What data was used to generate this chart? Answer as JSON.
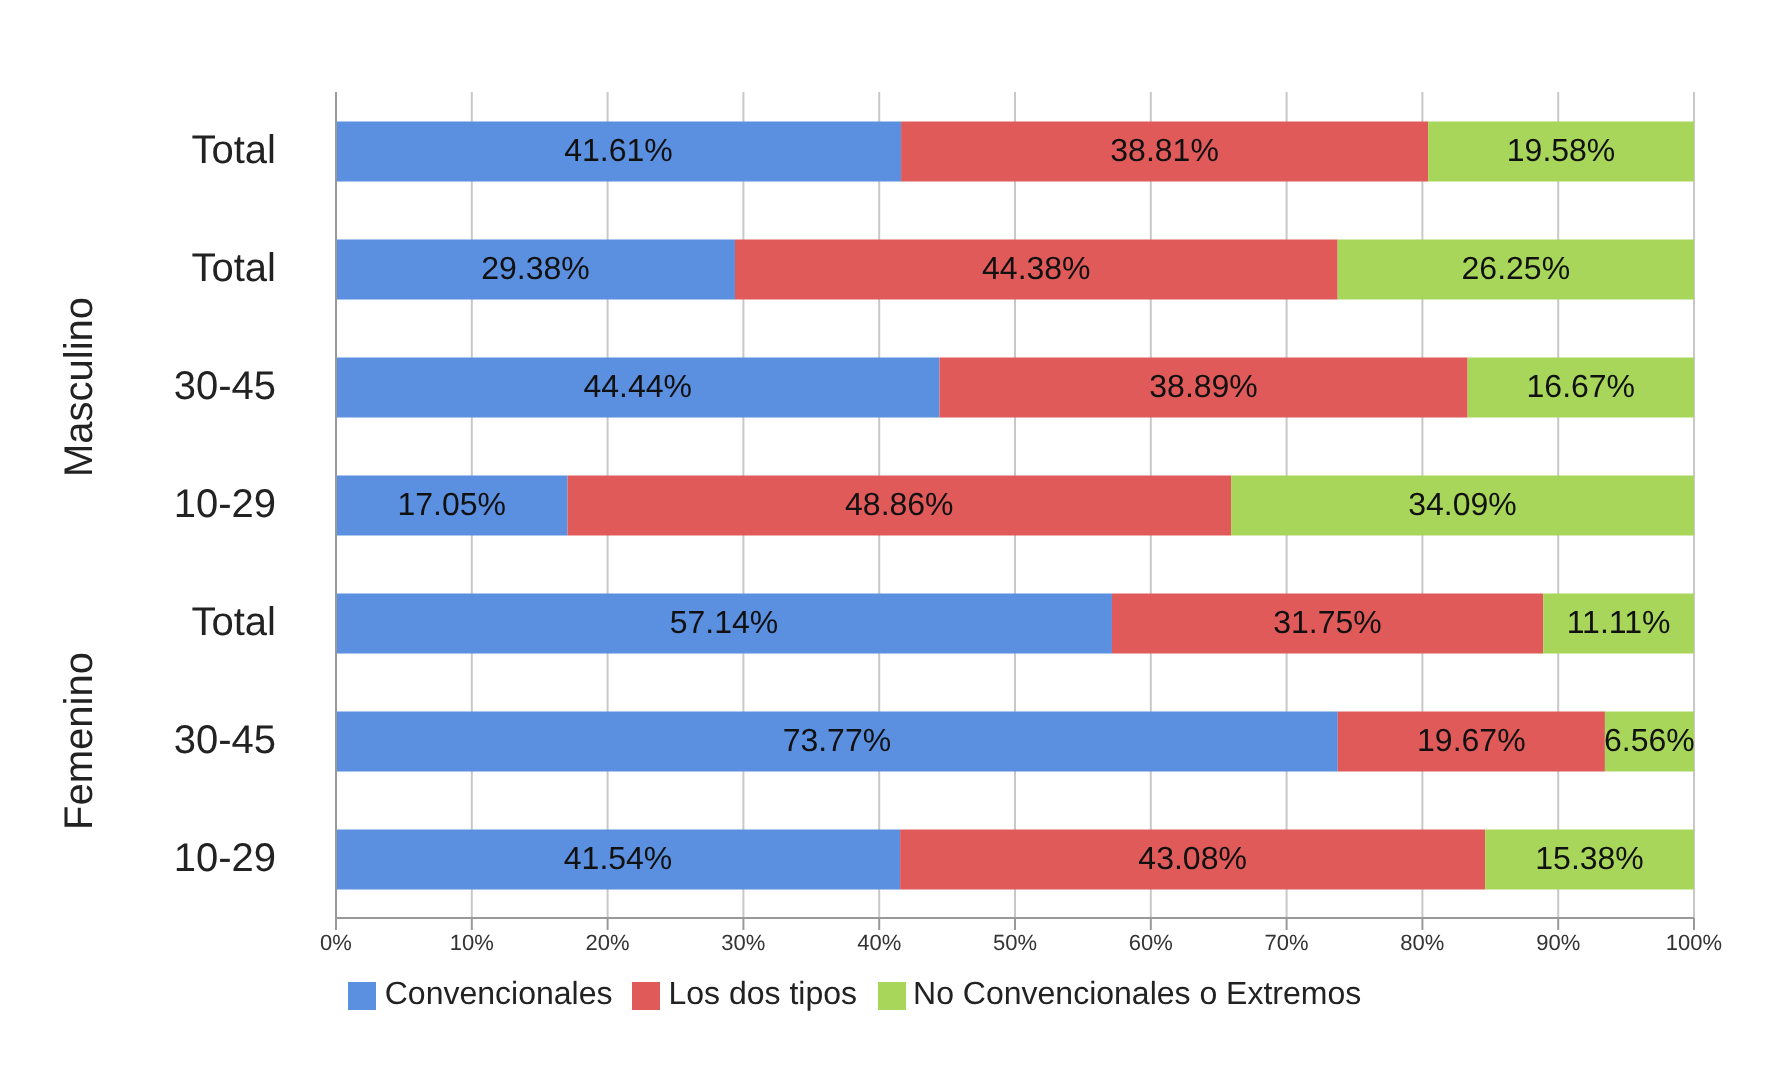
{
  "chart_data": {
    "type": "bar",
    "orientation": "horizontal",
    "stacked": true,
    "categories": [
      "Total",
      "Total",
      "30-45",
      "10-29",
      "Total",
      "30-45",
      "10-29"
    ],
    "annotations": [
      "Masculino",
      "Femenino"
    ],
    "series": [
      {
        "name": "Convencionales",
        "color": "#5b8fe0",
        "values": [
          41.61,
          29.38,
          44.44,
          17.05,
          57.14,
          73.77,
          41.54
        ],
        "value_labels": [
          "41.61%",
          "29.38%",
          "44.44%",
          "17.05%",
          "57.14%",
          "73.77%",
          "41.54%"
        ]
      },
      {
        "name": "Los dos tipos",
        "color": "#e05a5a",
        "values": [
          38.81,
          44.38,
          38.89,
          48.86,
          31.75,
          19.67,
          43.08
        ],
        "value_labels": [
          "38.81%",
          "44.38%",
          "38.89%",
          "48.86%",
          "31.75%",
          "19.67%",
          "43.08%"
        ]
      },
      {
        "name": "No Convencionales o Extremos",
        "color": "#a8d65a",
        "values": [
          19.58,
          26.25,
          16.67,
          34.09,
          11.11,
          6.56,
          15.38
        ],
        "value_labels": [
          "19.58%",
          "26.25%",
          "16.67%",
          "34.09%",
          "11.11%",
          "6.56%",
          "15.38%"
        ]
      }
    ],
    "xlim": [
      0,
      100
    ],
    "xticks": [
      {
        "value": 0,
        "label": "0%"
      },
      {
        "value": 10,
        "label": "10%"
      },
      {
        "value": 20,
        "label": "20%"
      },
      {
        "value": 30,
        "label": "30%"
      },
      {
        "value": 40,
        "label": "40%"
      },
      {
        "value": 50,
        "label": "50%"
      },
      {
        "value": 60,
        "label": "60%"
      },
      {
        "value": 70,
        "label": "70%"
      },
      {
        "value": 80,
        "label": "80%"
      },
      {
        "value": 90,
        "label": "90%"
      },
      {
        "value": 100,
        "label": "100%"
      }
    ],
    "grid": "x",
    "legend": "bottom"
  }
}
